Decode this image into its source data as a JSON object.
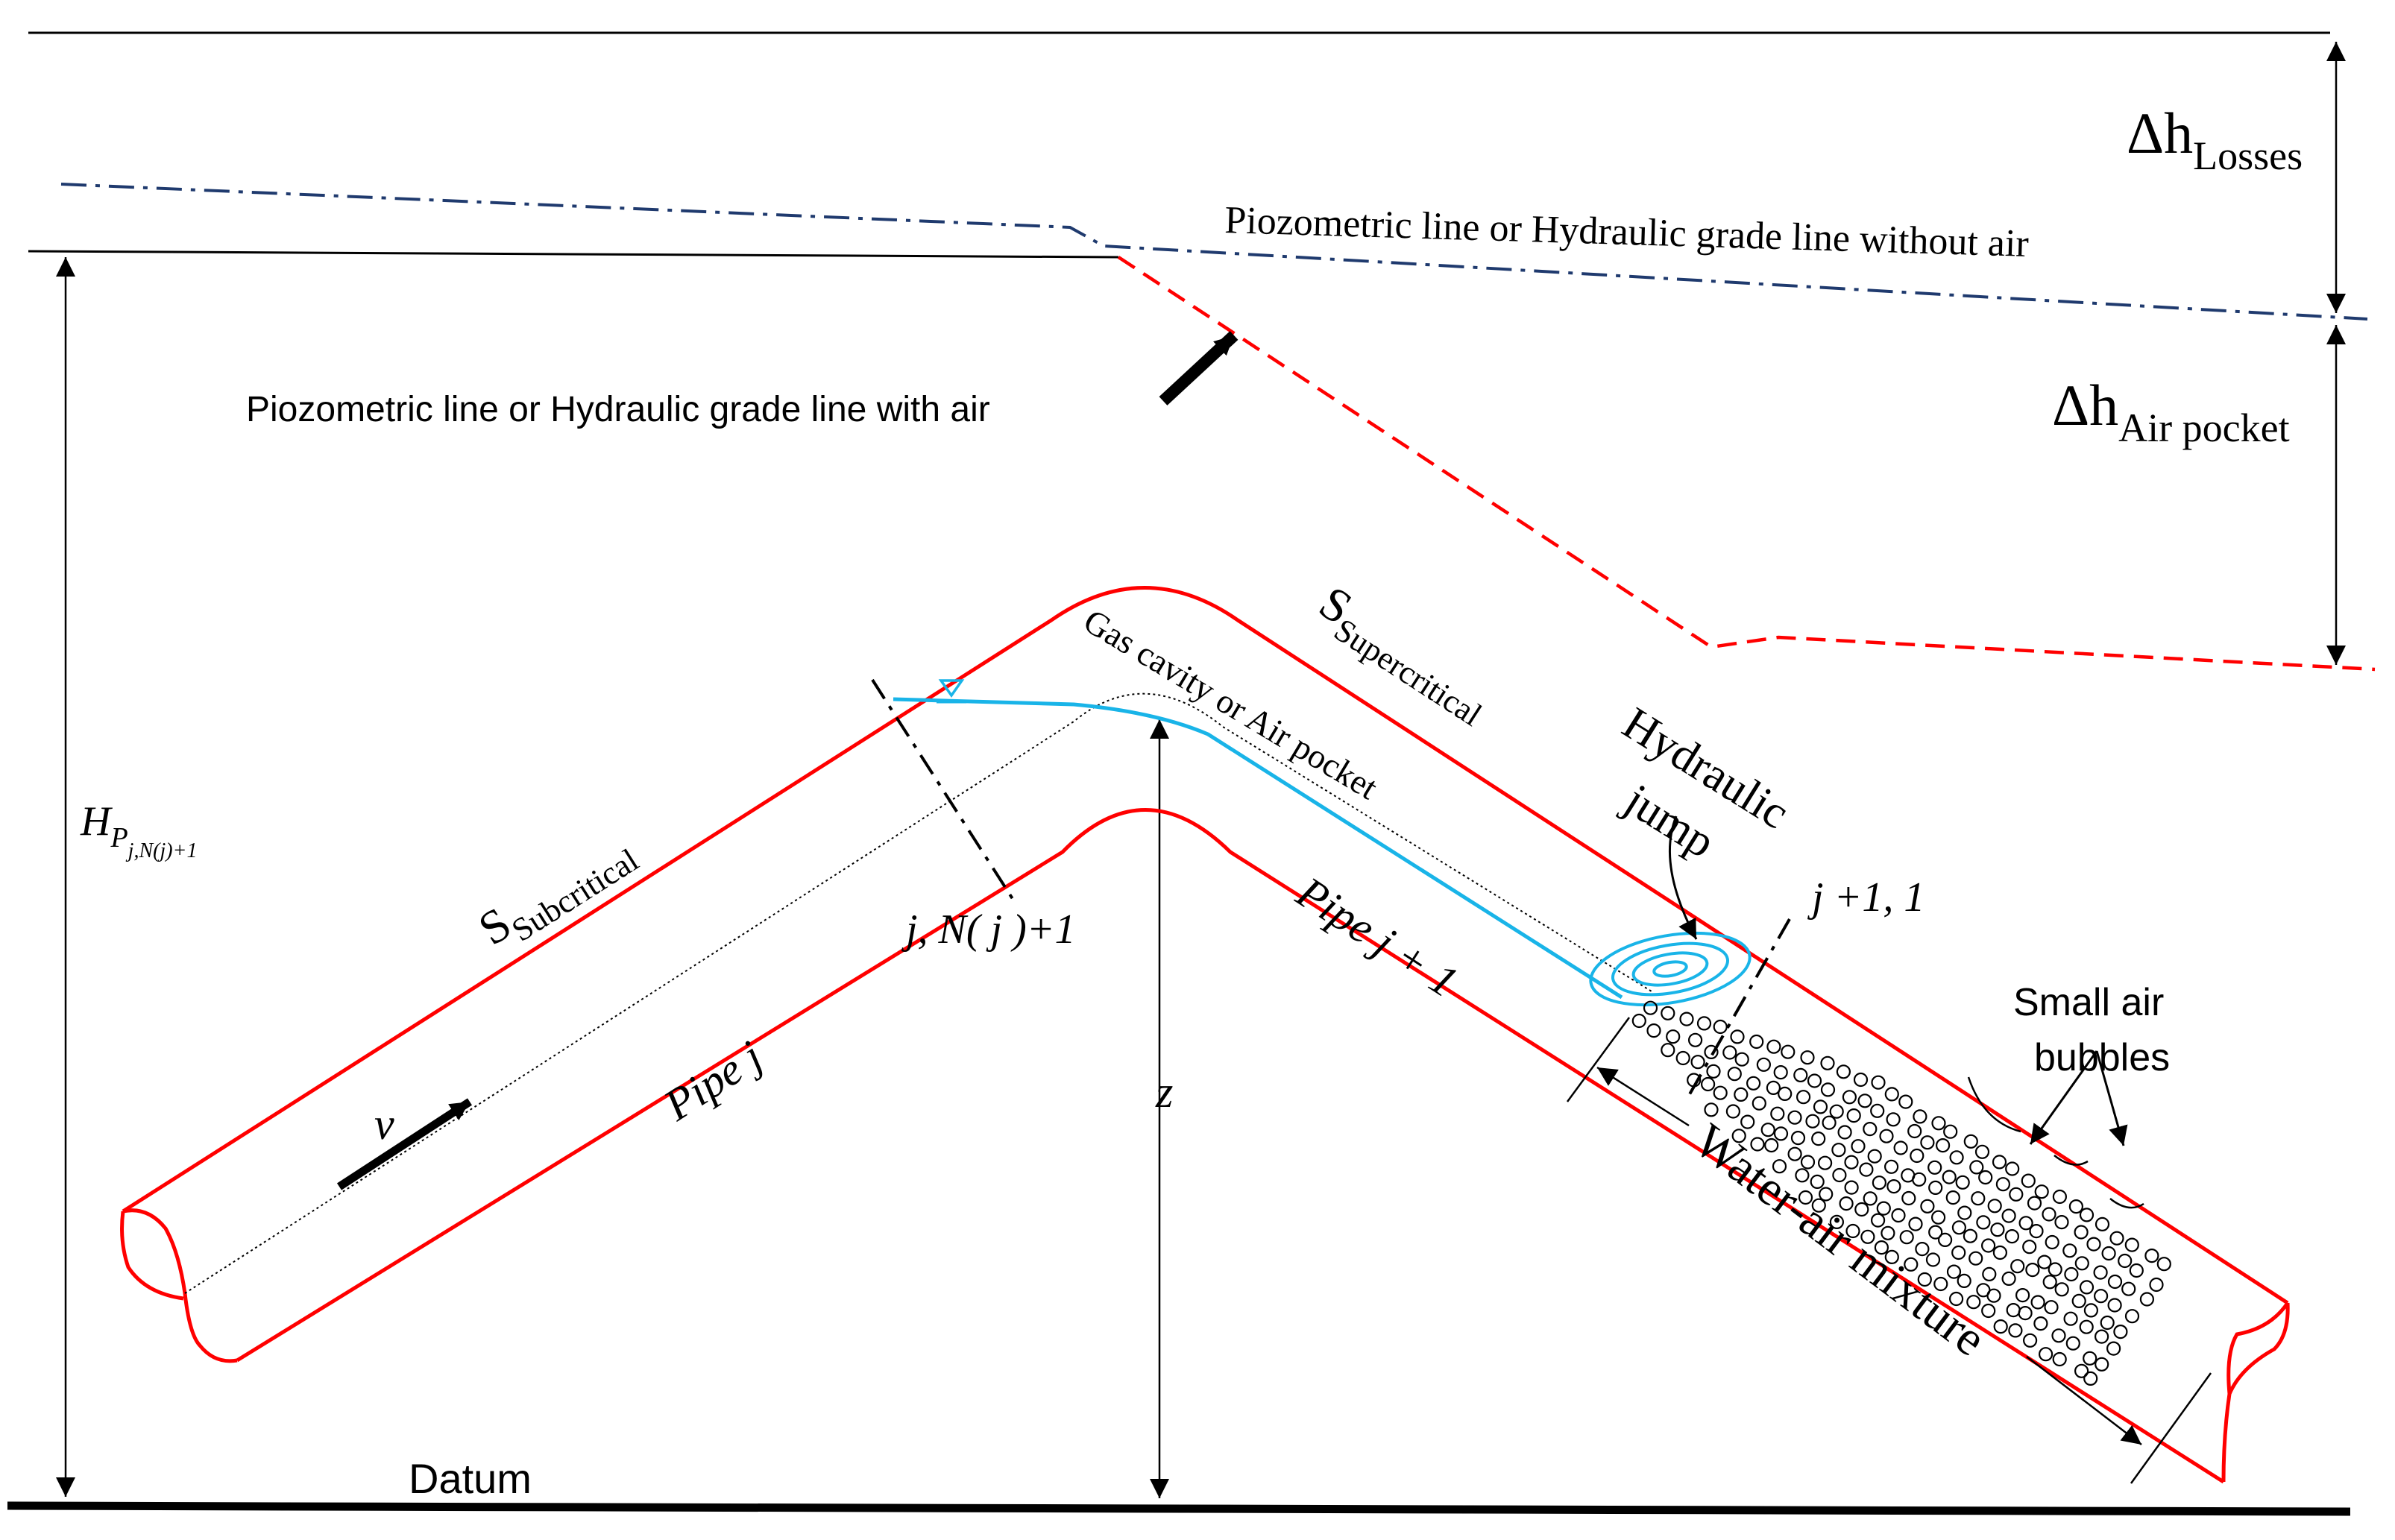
{
  "labels": {
    "dh_losses_main": "Δh",
    "dh_losses_sub": "Losses",
    "dh_air_main": "Δh",
    "dh_air_sub": "Air pocket",
    "hgl_without_air": "Piozometric line or Hydraulic grade line without air",
    "hgl_with_air": "Piozometric line or Hydraulic grade line with air",
    "head_main": "H",
    "head_sub1": "P",
    "head_sub2": "j,N(j)+1",
    "s_sub_main": "S",
    "s_sub_sub": "Subcritical",
    "s_super_main": "S",
    "s_super_sub": "Supercritical",
    "gas_cavity": "Gas cavity or Air pocket",
    "hydraulic": "Hydraulic",
    "jump": "jump",
    "section_left": "j, N( j )+1",
    "section_right": "j +1, 1",
    "pipe_j": "Pipe j",
    "pipe_j1": "Pipe j + 1",
    "velocity": "v",
    "z": "z",
    "small_air": "Small air",
    "bubbles": "bubbles",
    "water_air": "Water-air mixture",
    "datum": "Datum"
  },
  "colors": {
    "pipe": "#ff0000",
    "hgl_without_air": "#1f3a6e",
    "hgl_with_air": "#ff0000",
    "water_surface": "#19b4e8",
    "ink": "#000000"
  }
}
